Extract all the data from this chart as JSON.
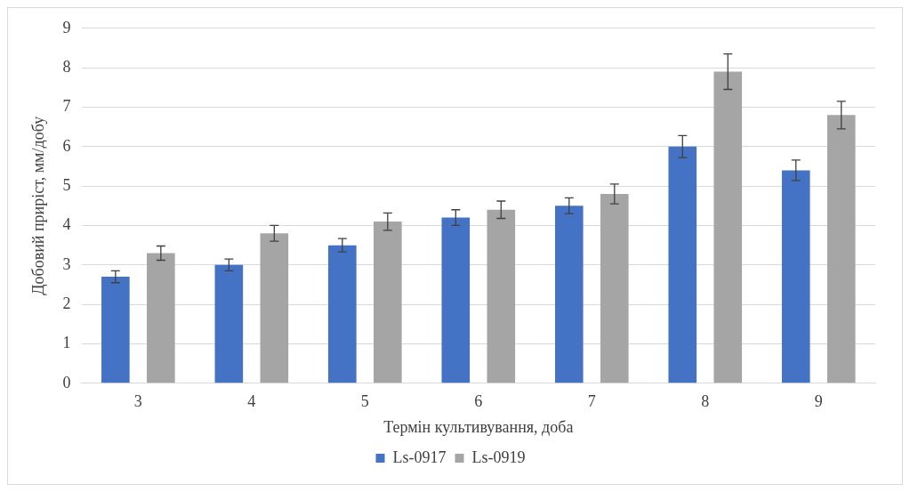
{
  "chart_data": {
    "type": "bar",
    "xlabel": "Термін культивування, доба",
    "ylabel": "Добовий приріст, мм/добу",
    "categories": [
      "3",
      "4",
      "5",
      "6",
      "7",
      "8",
      "9"
    ],
    "series": [
      {
        "name": "Ls-0917",
        "color": "#4472c4",
        "values": [
          2.7,
          3.0,
          3.5,
          4.2,
          4.5,
          6.0,
          5.4
        ],
        "errors": [
          0.15,
          0.15,
          0.17,
          0.2,
          0.2,
          0.28,
          0.26
        ]
      },
      {
        "name": "Ls-0919",
        "color": "#a5a5a5",
        "values": [
          3.3,
          3.8,
          4.1,
          4.4,
          4.8,
          7.9,
          6.8
        ],
        "errors": [
          0.18,
          0.2,
          0.22,
          0.22,
          0.25,
          0.45,
          0.35
        ]
      }
    ],
    "ylim": [
      0,
      9
    ],
    "yticks": [
      0,
      1,
      2,
      3,
      4,
      5,
      6,
      7,
      8,
      9
    ],
    "grid": "y",
    "legend": "bottom"
  }
}
